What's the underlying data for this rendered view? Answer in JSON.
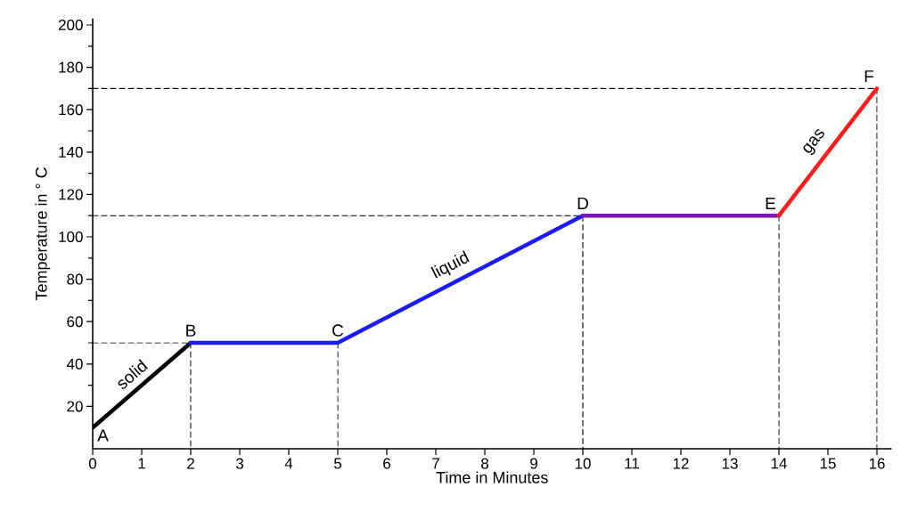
{
  "chart_data": {
    "type": "line",
    "xlabel": "Time in Minutes",
    "ylabel": "Temperature in ° C",
    "xlim": [
      0,
      16.3
    ],
    "ylim": [
      0,
      203
    ],
    "xticks": [
      0,
      1,
      2,
      3,
      4,
      5,
      6,
      7,
      8,
      9,
      10,
      11,
      12,
      13,
      14,
      15,
      16
    ],
    "yticks": [
      20,
      40,
      60,
      80,
      100,
      120,
      140,
      160,
      180,
      200
    ],
    "marker": "none",
    "series": [
      {
        "color": "#000000",
        "x": [
          0,
          2
        ],
        "values": [
          10,
          50
        ],
        "line_style": "solid"
      },
      {
        "color": "#1a1aff",
        "x": [
          2,
          5,
          10
        ],
        "values": [
          50,
          50,
          110
        ],
        "line_style": "solid"
      },
      {
        "color": "#7a1ab0",
        "x": [
          10,
          14
        ],
        "values": [
          110,
          110
        ],
        "line_style": "solid"
      },
      {
        "color": "#ff1a1a",
        "x": [
          14,
          16
        ],
        "values": [
          110,
          170
        ],
        "line_style": "solid"
      },
      {
        "color": "#000000",
        "x": [
          0,
          2,
          2
        ],
        "values": [
          50,
          50,
          0
        ],
        "line_style": "dashed"
      },
      {
        "color": "#000000",
        "x": [
          5,
          5
        ],
        "values": [
          50,
          0
        ],
        "line_style": "dashed"
      },
      {
        "color": "#000000",
        "x": [
          0,
          10,
          10
        ],
        "values": [
          110,
          110,
          0
        ],
        "line_style": "dashed"
      },
      {
        "color": "#000000",
        "x": [
          14,
          14
        ],
        "values": [
          110,
          0
        ],
        "line_style": "dashed"
      },
      {
        "color": "#000000",
        "x": [
          0,
          16,
          16
        ],
        "values": [
          170,
          170,
          0
        ],
        "line_style": "dashed"
      }
    ],
    "annotations": [
      {
        "text": "A",
        "x": 0,
        "y": 10
      },
      {
        "text": "B",
        "x": 2,
        "y": 50
      },
      {
        "text": "C",
        "x": 5,
        "y": 50
      },
      {
        "text": "D",
        "x": 10,
        "y": 110
      },
      {
        "text": "E",
        "x": 14,
        "y": 110
      },
      {
        "text": "F",
        "x": 16,
        "y": 170
      },
      {
        "text": "solid",
        "x": 1,
        "y": 30
      },
      {
        "text": "liquid",
        "x": 7.5,
        "y": 80
      },
      {
        "text": "gas",
        "x": 15,
        "y": 140
      }
    ]
  }
}
